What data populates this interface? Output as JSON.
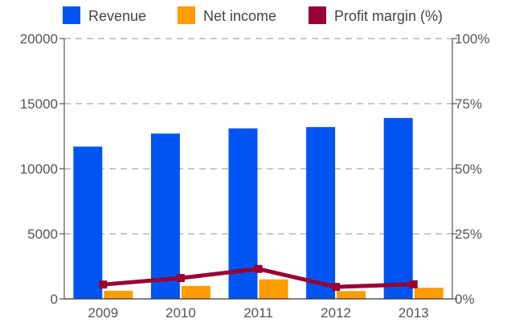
{
  "chart_data": {
    "type": "bar",
    "categories": [
      "2009",
      "2010",
      "2011",
      "2012",
      "2013"
    ],
    "series": [
      {
        "name": "Revenue",
        "kind": "bar",
        "axis": "left",
        "color": "#0055f2",
        "values": [
          11700,
          12700,
          13100,
          13200,
          13900
        ]
      },
      {
        "name": "Net income",
        "kind": "bar",
        "axis": "left",
        "color": "#ff9c00",
        "values": [
          620,
          1000,
          1500,
          600,
          850
        ]
      },
      {
        "name": "Profit margin (%)",
        "kind": "line",
        "axis": "right",
        "color": "#990033",
        "values": [
          5.5,
          8.0,
          11.5,
          4.6,
          5.6
        ]
      }
    ],
    "y_left": {
      "min": 0,
      "max": 20000,
      "ticks": [
        "0",
        "5000",
        "10000",
        "15000",
        "20000"
      ]
    },
    "y_right": {
      "min": 0,
      "max": 100,
      "ticks": [
        "0%",
        "25%",
        "50%",
        "75%",
        "100%"
      ]
    },
    "grid": true,
    "legend_position": "top"
  }
}
